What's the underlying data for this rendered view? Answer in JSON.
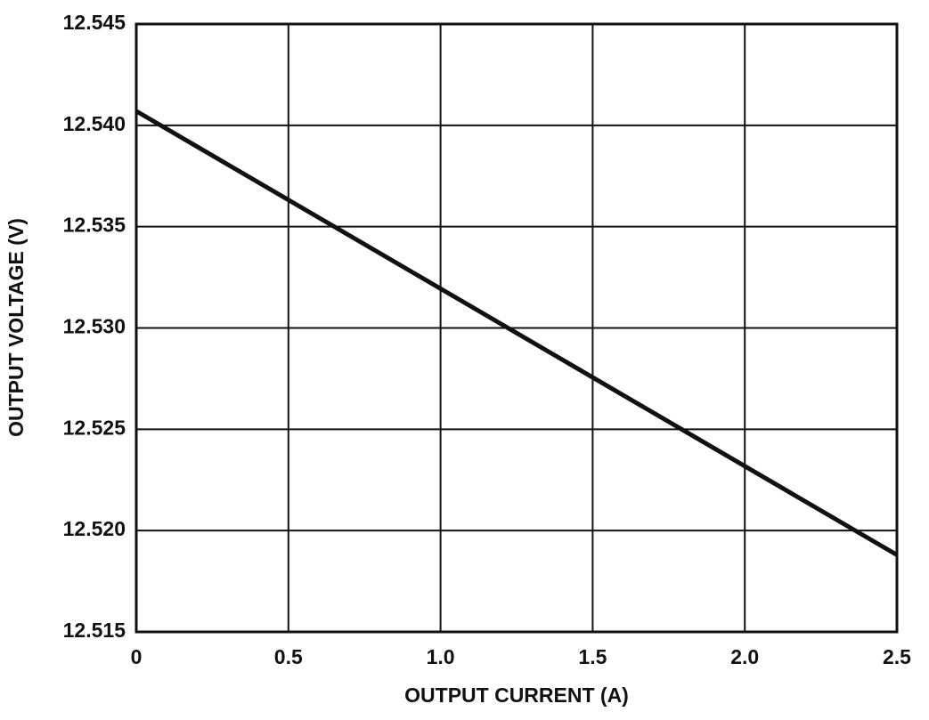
{
  "chart_data": {
    "type": "line",
    "x_label": "OUTPUT CURRENT (A)",
    "y_label": "OUTPUT VOLTAGE (V)",
    "x": [
      0,
      2.5
    ],
    "series": [
      {
        "color": "#111111",
        "values": [
          12.5407,
          12.5188
        ]
      }
    ],
    "xlim": [
      0,
      2.5
    ],
    "ylim": [
      12.515,
      12.545
    ],
    "xticks": [
      0,
      0.5,
      {
        "value": 1,
        "label": "1.0"
      },
      1.5,
      {
        "value": 2,
        "label": "2.0"
      },
      2.5
    ],
    "yticks": [
      12.515,
      {
        "value": 12.52,
        "label": "12.520"
      },
      12.525,
      {
        "value": 12.53,
        "label": "12.530"
      },
      12.535,
      {
        "value": 12.54,
        "label": "12.540"
      },
      12.545
    ],
    "grid": true
  }
}
